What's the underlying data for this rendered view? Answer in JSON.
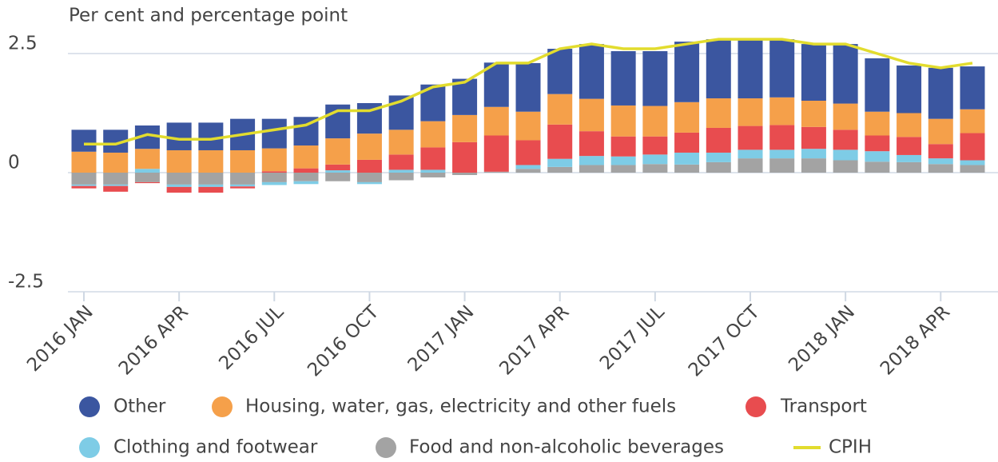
{
  "chart_data": {
    "type": "bar",
    "stacked": true,
    "subtitle": "Per cent and percentage point",
    "categories": [
      "2016 JAN",
      null,
      null,
      "2016 APR",
      null,
      null,
      "2016 JUL",
      null,
      null,
      "2016 OCT",
      null,
      null,
      "2017 JAN",
      null,
      null,
      "2017 APR",
      null,
      null,
      "2017 JUL",
      null,
      null,
      "2017 OCT",
      null,
      null,
      "2018 JAN",
      null,
      null,
      "2018 APR",
      null
    ],
    "ylim": [
      -2.5,
      2.8
    ],
    "yticks": [
      -2.5,
      0,
      2.5
    ],
    "grid": true,
    "series": [
      {
        "name": "Other",
        "color": "#3b56a0",
        "values": [
          0.46,
          0.48,
          0.49,
          0.58,
          0.58,
          0.66,
          0.62,
          0.6,
          0.71,
          0.64,
          0.72,
          0.77,
          0.76,
          0.93,
          1.02,
          0.95,
          1.15,
          1.14,
          1.15,
          1.27,
          1.24,
          1.24,
          1.22,
          1.19,
          1.25,
          1.12,
          1.0,
          1.07,
          0.9
        ]
      },
      {
        "name": "Housing, water, gas, electricity and other fuels",
        "color": "#f5a04a",
        "values": [
          0.44,
          0.42,
          0.42,
          0.47,
          0.47,
          0.47,
          0.48,
          0.48,
          0.55,
          0.55,
          0.52,
          0.55,
          0.57,
          0.6,
          0.6,
          0.64,
          0.68,
          0.65,
          0.64,
          0.64,
          0.62,
          0.58,
          0.58,
          0.55,
          0.55,
          0.5,
          0.5,
          0.53,
          0.5
        ]
      },
      {
        "name": "Transport",
        "color": "#e84c4f",
        "values": [
          -0.05,
          -0.12,
          -0.02,
          -0.12,
          -0.12,
          -0.04,
          0.03,
          0.09,
          0.12,
          0.27,
          0.32,
          0.47,
          0.64,
          0.76,
          0.52,
          0.72,
          0.52,
          0.42,
          0.38,
          0.42,
          0.52,
          0.5,
          0.52,
          0.46,
          0.42,
          0.33,
          0.38,
          0.3,
          0.57
        ]
      },
      {
        "name": "Clothing and footwear",
        "color": "#7ecce6",
        "values": [
          -0.03,
          -0.03,
          0.08,
          -0.05,
          -0.05,
          -0.04,
          -0.06,
          -0.06,
          0.05,
          -0.04,
          0.06,
          0.06,
          0.0,
          0.0,
          0.08,
          0.17,
          0.19,
          0.18,
          0.2,
          0.25,
          0.2,
          0.18,
          0.18,
          0.2,
          0.22,
          0.22,
          0.15,
          0.12,
          0.1
        ]
      },
      {
        "name": "Food and non-alcoholic beverages",
        "color": "#a3a3a3",
        "values": [
          -0.25,
          -0.25,
          -0.2,
          -0.25,
          -0.25,
          -0.25,
          -0.2,
          -0.18,
          -0.18,
          -0.2,
          -0.16,
          -0.1,
          -0.05,
          0.02,
          0.08,
          0.12,
          0.16,
          0.16,
          0.18,
          0.17,
          0.22,
          0.3,
          0.3,
          0.3,
          0.26,
          0.23,
          0.22,
          0.18,
          0.16
        ]
      },
      {
        "name": "CPIH",
        "color": "#e2dc2e",
        "type": "line",
        "values": [
          0.6,
          0.6,
          0.8,
          0.7,
          0.7,
          0.8,
          0.9,
          1.0,
          1.3,
          1.3,
          1.5,
          1.8,
          1.9,
          2.3,
          2.3,
          2.6,
          2.7,
          2.6,
          2.6,
          2.7,
          2.8,
          2.8,
          2.8,
          2.7,
          2.7,
          2.5,
          2.3,
          2.2,
          2.3
        ]
      }
    ]
  }
}
